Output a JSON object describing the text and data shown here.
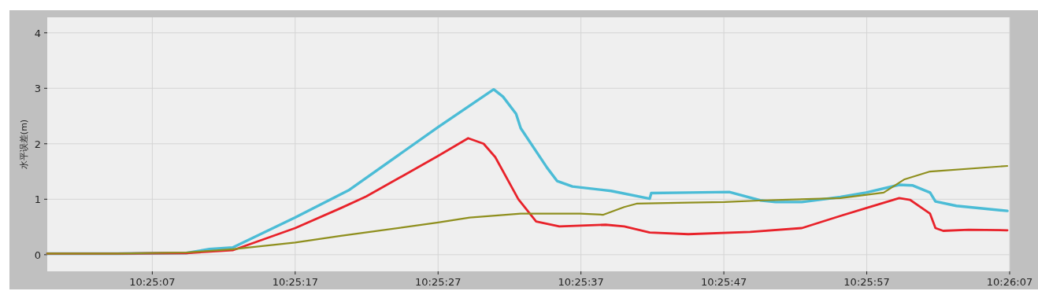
{
  "chart_data": {
    "type": "line",
    "ylabel": "水平误差(m)",
    "xlim": [
      10.416569,
      10.435278
    ],
    "ylim": [
      -0.3,
      4.28
    ],
    "xticks": [
      {
        "value": 10.418611,
        "label": "10:25:07"
      },
      {
        "value": 10.421389,
        "label": "10:25:17"
      },
      {
        "value": 10.424167,
        "label": "10:25:27"
      },
      {
        "value": 10.426944,
        "label": "10:25:37"
      },
      {
        "value": 10.429722,
        "label": "10:25:47"
      },
      {
        "value": 10.4325,
        "label": "10:25:57"
      },
      {
        "value": 10.435278,
        "label": "10:26:07"
      }
    ],
    "yticks": [
      0,
      1,
      2,
      3,
      4
    ],
    "grid": true,
    "line_style": "solid",
    "series": [
      {
        "color": "#4bbcd6",
        "x": [
          10.416569,
          10.41792,
          10.419272,
          10.419722,
          10.420173,
          10.421389,
          10.422275,
          10.422425,
          10.424167,
          10.425248,
          10.425428,
          10.425683,
          10.425773,
          10.426284,
          10.426479,
          10.426779,
          10.42753,
          10.428281,
          10.428311,
          10.429031,
          10.429827,
          10.430428,
          10.430728,
          10.431239,
          10.431989,
          10.432485,
          10.433131,
          10.433386,
          10.433731,
          10.433836,
          10.434242,
          10.435233
        ],
        "values": [
          0.02,
          0.02,
          0.03,
          0.1,
          0.13,
          0.67,
          1.09,
          1.16,
          2.3,
          2.98,
          2.85,
          2.54,
          2.28,
          1.57,
          1.33,
          1.23,
          1.15,
          1.01,
          1.11,
          1.12,
          1.13,
          0.98,
          0.95,
          0.95,
          1.04,
          1.12,
          1.26,
          1.25,
          1.12,
          0.96,
          0.88,
          0.79
        ]
      },
      {
        "color": "#e8222a",
        "x": [
          10.416569,
          10.41792,
          10.419272,
          10.420173,
          10.421389,
          10.422275,
          10.42277,
          10.424167,
          10.424752,
          10.425052,
          10.425278,
          10.425728,
          10.426073,
          10.426524,
          10.427425,
          10.427785,
          10.428281,
          10.429031,
          10.430233,
          10.431239,
          10.431989,
          10.432485,
          10.433131,
          10.433341,
          10.433731,
          10.433836,
          10.433986,
          10.434482,
          10.435233
        ],
        "values": [
          0.02,
          0.02,
          0.03,
          0.08,
          0.48,
          0.84,
          1.05,
          1.78,
          2.1,
          2.0,
          1.76,
          1.0,
          0.6,
          0.51,
          0.54,
          0.51,
          0.4,
          0.37,
          0.41,
          0.48,
          0.7,
          0.84,
          1.02,
          0.99,
          0.74,
          0.48,
          0.43,
          0.45,
          0.44
        ]
      },
      {
        "color": "#8f8f1e",
        "x": [
          10.416569,
          10.41792,
          10.419272,
          10.420173,
          10.421389,
          10.422275,
          10.424167,
          10.424782,
          10.425773,
          10.426929,
          10.42738,
          10.427785,
          10.428025,
          10.429031,
          10.429737,
          10.430488,
          10.431989,
          10.43283,
          10.433236,
          10.433731,
          10.435233
        ],
        "values": [
          0.02,
          0.02,
          0.04,
          0.1,
          0.22,
          0.34,
          0.58,
          0.67,
          0.74,
          0.74,
          0.72,
          0.86,
          0.92,
          0.94,
          0.95,
          0.98,
          1.02,
          1.12,
          1.36,
          1.5,
          1.6
        ]
      }
    ]
  }
}
